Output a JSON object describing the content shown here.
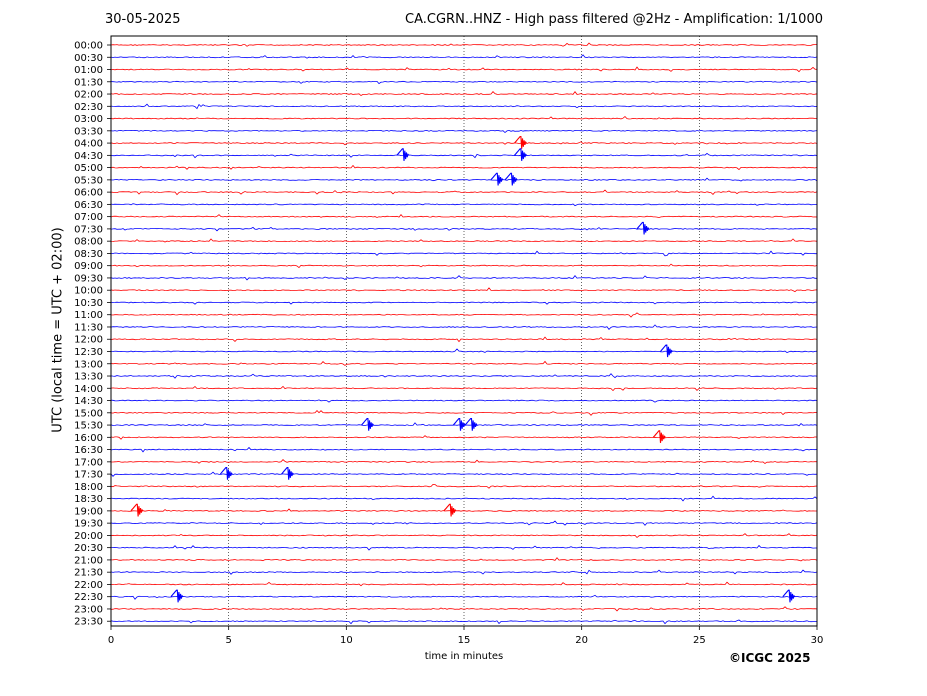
{
  "header": {
    "date": "30-05-2025",
    "title": "CA.CGRN..HNZ - High pass filtered @2Hz - Amplification: 1/1000"
  },
  "copyright": "©ICGC 2025",
  "chart_data": {
    "type": "line",
    "title": "CA.CGRN..HNZ - High pass filtered @2Hz - Amplification: 1/1000",
    "xlabel": "time in minutes",
    "ylabel": "UTC (local time = UTC + 02:00)",
    "xlim": [
      0,
      30
    ],
    "xticks": [
      0,
      5,
      10,
      15,
      20,
      25,
      30
    ],
    "grid": "vertical dotted at 5,10,15,20,25",
    "row_labels": [
      "00:00",
      "00:30",
      "01:00",
      "01:30",
      "02:00",
      "02:30",
      "03:00",
      "03:30",
      "04:00",
      "04:30",
      "05:00",
      "05:30",
      "06:00",
      "06:30",
      "07:00",
      "07:30",
      "08:00",
      "08:30",
      "09:00",
      "09:30",
      "10:00",
      "10:30",
      "11:00",
      "11:30",
      "12:00",
      "12:30",
      "13:00",
      "13:30",
      "14:00",
      "14:30",
      "15:00",
      "15:30",
      "16:00",
      "16:30",
      "17:00",
      "17:30",
      "18:00",
      "18:30",
      "19:00",
      "19:30",
      "20:00",
      "20:30",
      "21:00",
      "21:30",
      "22:00",
      "22:30",
      "23:00",
      "23:30"
    ],
    "trace_colors": [
      "#ff0000",
      "#0000ff"
    ],
    "events": [
      {
        "row": "04:00",
        "minute": 17.4
      },
      {
        "row": "04:30",
        "minute": 12.4
      },
      {
        "row": "04:30",
        "minute": 17.4
      },
      {
        "row": "05:30",
        "minute": 16.4
      },
      {
        "row": "05:30",
        "minute": 17.0
      },
      {
        "row": "07:30",
        "minute": 22.6
      },
      {
        "row": "12:30",
        "minute": 23.6
      },
      {
        "row": "15:30",
        "minute": 10.9
      },
      {
        "row": "15:30",
        "minute": 14.8
      },
      {
        "row": "15:30",
        "minute": 15.3
      },
      {
        "row": "16:00",
        "minute": 23.3
      },
      {
        "row": "17:30",
        "minute": 4.9
      },
      {
        "row": "17:30",
        "minute": 7.5
      },
      {
        "row": "19:00",
        "minute": 1.1
      },
      {
        "row": "19:00",
        "minute": 14.4
      },
      {
        "row": "22:30",
        "minute": 2.8
      },
      {
        "row": "22:30",
        "minute": 28.8
      }
    ]
  }
}
